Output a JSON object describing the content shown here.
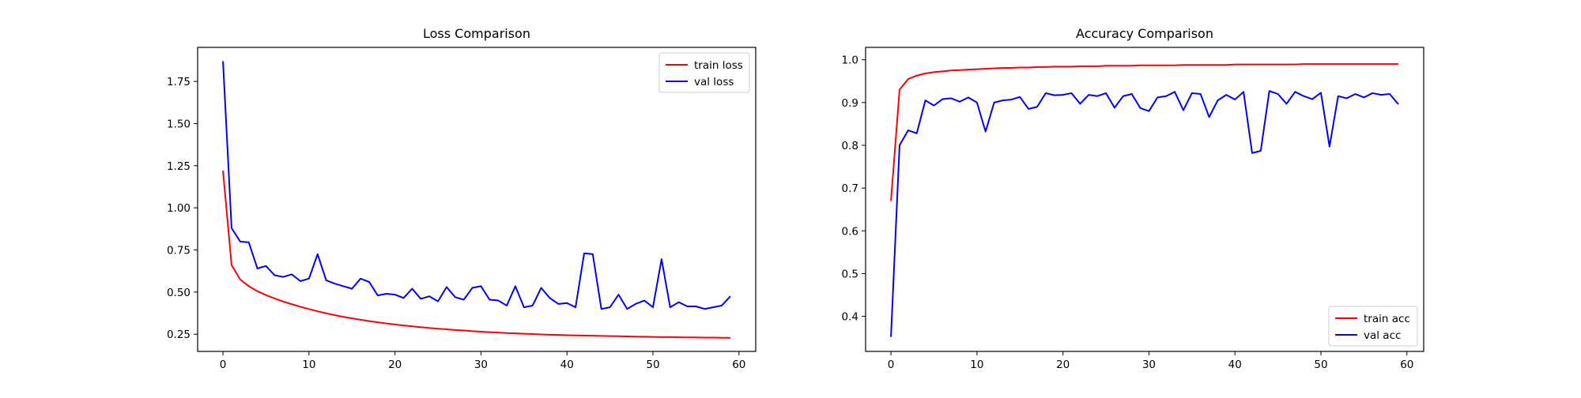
{
  "chart_data": [
    {
      "type": "line",
      "title": "Loss Comparison",
      "xlabel": "",
      "ylabel": "",
      "xlim": [
        -2.95,
        61.95
      ],
      "ylim": [
        0.148,
        1.952
      ],
      "xticks": [
        0,
        10,
        20,
        30,
        40,
        50,
        60
      ],
      "yticks": [
        0.25,
        0.5,
        0.75,
        1.0,
        1.25,
        1.5,
        1.75
      ],
      "ytick_labels": [
        "0.25",
        "0.50",
        "0.75",
        "1.00",
        "1.25",
        "1.50",
        "1.75"
      ],
      "xtick_labels": [
        "0",
        "10",
        "20",
        "30",
        "40",
        "50",
        "60"
      ],
      "legend_position": "top-right",
      "series": [
        {
          "name": "train loss",
          "color": "#ff0000",
          "values": [
            1.22,
            0.66,
            0.575,
            0.535,
            0.505,
            0.482,
            0.462,
            0.444,
            0.428,
            0.413,
            0.399,
            0.386,
            0.374,
            0.363,
            0.353,
            0.344,
            0.336,
            0.328,
            0.321,
            0.314,
            0.308,
            0.302,
            0.297,
            0.292,
            0.287,
            0.283,
            0.279,
            0.275,
            0.272,
            0.268,
            0.265,
            0.262,
            0.26,
            0.257,
            0.255,
            0.253,
            0.251,
            0.249,
            0.247,
            0.246,
            0.244,
            0.243,
            0.242,
            0.241,
            0.24,
            0.239,
            0.238,
            0.237,
            0.236,
            0.235,
            0.234,
            0.233,
            0.233,
            0.232,
            0.231,
            0.231,
            0.23,
            0.23,
            0.229,
            0.229
          ]
        },
        {
          "name": "val loss",
          "color": "#0000ff",
          "values": [
            1.87,
            0.88,
            0.8,
            0.795,
            0.64,
            0.655,
            0.6,
            0.59,
            0.605,
            0.565,
            0.58,
            0.725,
            0.57,
            0.55,
            0.535,
            0.52,
            0.58,
            0.56,
            0.48,
            0.49,
            0.485,
            0.465,
            0.52,
            0.46,
            0.475,
            0.445,
            0.53,
            0.47,
            0.455,
            0.525,
            0.535,
            0.455,
            0.45,
            0.42,
            0.535,
            0.41,
            0.42,
            0.525,
            0.465,
            0.43,
            0.435,
            0.41,
            0.73,
            0.725,
            0.4,
            0.41,
            0.485,
            0.4,
            0.43,
            0.45,
            0.41,
            0.695,
            0.41,
            0.44,
            0.415,
            0.415,
            0.4,
            0.41,
            0.42,
            0.475
          ]
        }
      ]
    },
    {
      "type": "line",
      "title": "Accuracy Comparison",
      "xlabel": "",
      "ylabel": "",
      "xlim": [
        -2.95,
        61.95
      ],
      "ylim": [
        0.318,
        1.029
      ],
      "xticks": [
        0,
        10,
        20,
        30,
        40,
        50,
        60
      ],
      "yticks": [
        0.4,
        0.5,
        0.6,
        0.7,
        0.8,
        0.9,
        1.0
      ],
      "ytick_labels": [
        "0.4",
        "0.5",
        "0.6",
        "0.7",
        "0.8",
        "0.9",
        "1.0"
      ],
      "xtick_labels": [
        "0",
        "10",
        "20",
        "30",
        "40",
        "50",
        "60"
      ],
      "legend_position": "bottom-right",
      "series": [
        {
          "name": "train acc",
          "color": "#ff0000",
          "values": [
            0.67,
            0.93,
            0.955,
            0.963,
            0.968,
            0.971,
            0.973,
            0.975,
            0.976,
            0.977,
            0.978,
            0.979,
            0.98,
            0.981,
            0.981,
            0.982,
            0.982,
            0.983,
            0.983,
            0.984,
            0.984,
            0.984,
            0.985,
            0.985,
            0.985,
            0.986,
            0.986,
            0.986,
            0.986,
            0.987,
            0.987,
            0.987,
            0.987,
            0.987,
            0.988,
            0.988,
            0.988,
            0.988,
            0.988,
            0.988,
            0.989,
            0.989,
            0.989,
            0.989,
            0.989,
            0.989,
            0.989,
            0.989,
            0.99,
            0.99,
            0.99,
            0.99,
            0.99,
            0.99,
            0.99,
            0.99,
            0.99,
            0.99,
            0.99,
            0.99
          ]
        },
        {
          "name": "val acc",
          "color": "#0000ff",
          "values": [
            0.352,
            0.8,
            0.835,
            0.828,
            0.905,
            0.893,
            0.908,
            0.91,
            0.902,
            0.912,
            0.9,
            0.832,
            0.9,
            0.905,
            0.907,
            0.913,
            0.885,
            0.89,
            0.922,
            0.917,
            0.918,
            0.922,
            0.897,
            0.918,
            0.915,
            0.922,
            0.888,
            0.915,
            0.92,
            0.887,
            0.88,
            0.912,
            0.915,
            0.925,
            0.882,
            0.922,
            0.92,
            0.866,
            0.905,
            0.918,
            0.907,
            0.925,
            0.782,
            0.787,
            0.927,
            0.92,
            0.897,
            0.925,
            0.915,
            0.908,
            0.923,
            0.797,
            0.915,
            0.91,
            0.92,
            0.912,
            0.922,
            0.918,
            0.92,
            0.896
          ]
        }
      ]
    }
  ]
}
